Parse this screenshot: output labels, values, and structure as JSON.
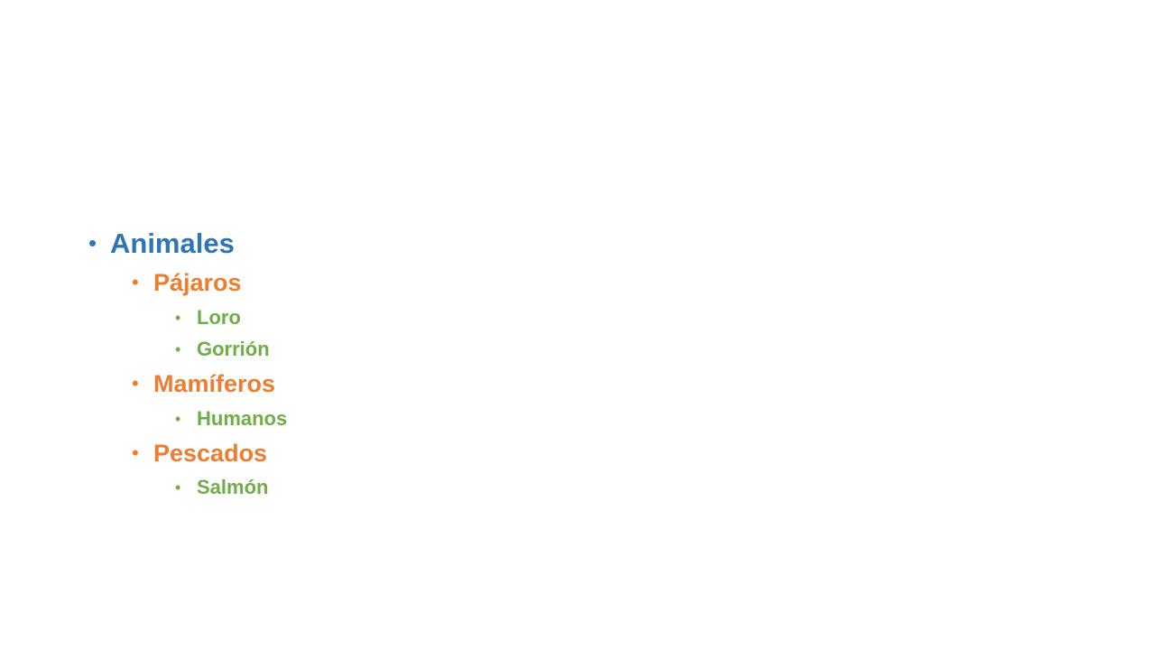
{
  "slide": {
    "outline": {
      "bullet_glyph": "•",
      "root": {
        "label": "Animales",
        "color": "#2e75b6"
      },
      "groups": [
        {
          "label": "Pájaros",
          "children": [
            "Loro",
            "Gorrión"
          ]
        },
        {
          "label": "Mamíferos",
          "children": [
            "Humanos"
          ]
        },
        {
          "label": "Pescados",
          "children": [
            "Salmón"
          ]
        }
      ],
      "group_color": "#ed7d31",
      "child_color": "#70ad47"
    }
  }
}
